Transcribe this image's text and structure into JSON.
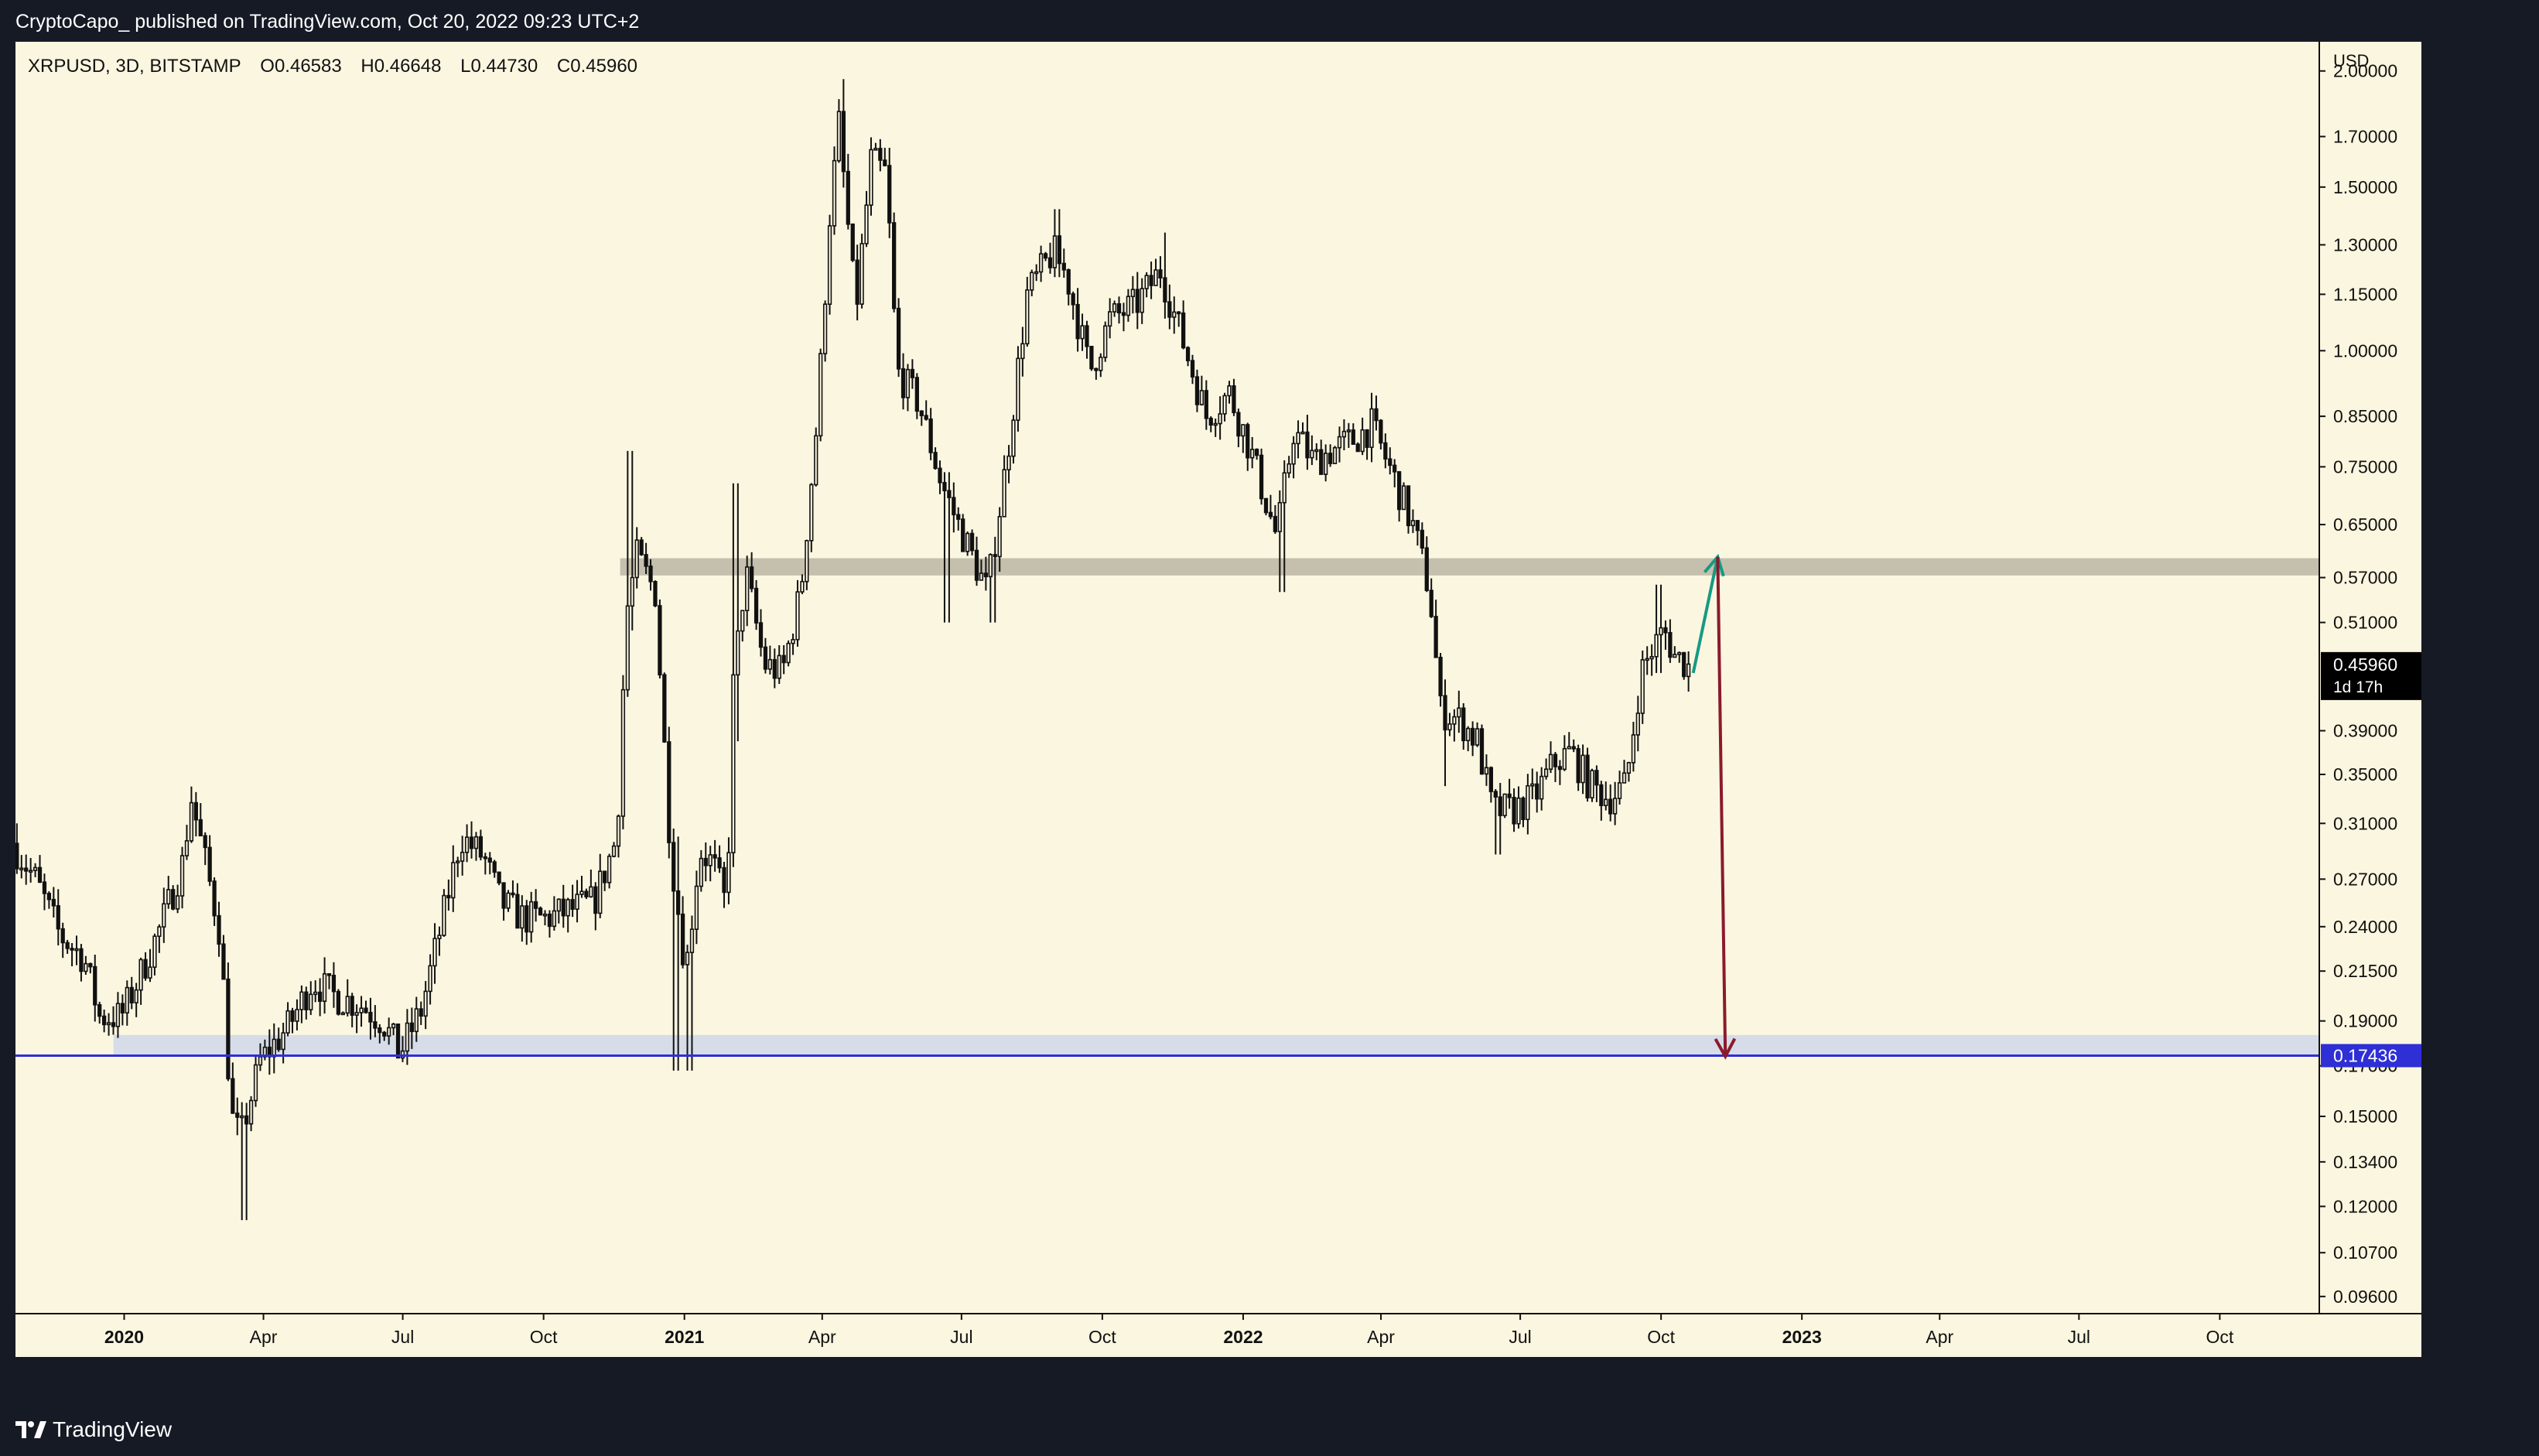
{
  "header": {
    "published_line": "CryptoCapo_ published on TradingView.com, Oct 20, 2022 09:23 UTC+2"
  },
  "legend": {
    "symbol": "XRPUSD, 3D, BITSTAMP",
    "open": "O0.46583",
    "high": "H0.46648",
    "low": "L0.44730",
    "close": "C0.45960"
  },
  "footer": {
    "brand": "TradingView"
  },
  "colors": {
    "background": "#fbf6e0",
    "chrome": "#161a25",
    "candle": "#111111",
    "resistance_zone": "#c5bfae",
    "support_zone": "#d6dce8",
    "support_line": "#2f2fd6",
    "arrow_up": "#169a82",
    "arrow_down": "#8b1a2c",
    "price_badge": "#000000",
    "level_badge": "#2f2fd6"
  },
  "chart_data": {
    "type": "candlestick",
    "symbol": "XRPUSD",
    "timeframe": "3D",
    "exchange": "BITSTAMP",
    "currency": "USD",
    "scale": "log",
    "y_range": [
      0.092,
      2.15
    ],
    "x_range": [
      "2019-10-22",
      "2023-12-05"
    ],
    "y_ticks": [
      "2.00000",
      "1.70000",
      "1.50000",
      "1.30000",
      "1.15000",
      "1.00000",
      "0.85000",
      "0.75000",
      "0.65000",
      "0.57000",
      "0.51000",
      "0.39000",
      "0.35000",
      "0.31000",
      "0.27000",
      "0.24000",
      "0.21500",
      "0.19000",
      "0.17000",
      "0.15000",
      "0.13400",
      "0.12000",
      "0.10700",
      "0.09600"
    ],
    "x_ticks": [
      {
        "label": "2020",
        "date": "2020-01-01",
        "bold": true
      },
      {
        "label": "Apr",
        "date": "2020-04-01",
        "bold": false
      },
      {
        "label": "Jul",
        "date": "2020-07-01",
        "bold": false
      },
      {
        "label": "Oct",
        "date": "2020-10-01",
        "bold": false
      },
      {
        "label": "2021",
        "date": "2021-01-01",
        "bold": true
      },
      {
        "label": "Apr",
        "date": "2021-04-01",
        "bold": false
      },
      {
        "label": "Jul",
        "date": "2021-07-01",
        "bold": false
      },
      {
        "label": "Oct",
        "date": "2021-10-01",
        "bold": false
      },
      {
        "label": "2022",
        "date": "2022-01-01",
        "bold": true
      },
      {
        "label": "Apr",
        "date": "2022-04-01",
        "bold": false
      },
      {
        "label": "Jul",
        "date": "2022-07-01",
        "bold": false
      },
      {
        "label": "Oct",
        "date": "2022-10-01",
        "bold": false
      },
      {
        "label": "2023",
        "date": "2023-01-01",
        "bold": true
      },
      {
        "label": "Apr",
        "date": "2023-04-01",
        "bold": false
      },
      {
        "label": "Jul",
        "date": "2023-07-01",
        "bold": false
      },
      {
        "label": "Oct",
        "date": "2023-10-01",
        "bold": false
      }
    ],
    "last_price": {
      "value": 0.4596,
      "label": "0.45960",
      "countdown": "1d 17h"
    },
    "support_level": {
      "value": 0.17436,
      "label": "0.17436"
    },
    "resistance_zone": {
      "from": "2020-11-20",
      "to": "2023-12-05",
      "low": 0.573,
      "high": 0.598
    },
    "support_zone": {
      "from": "2019-12-25",
      "to": "2023-12-05",
      "low": 0.1744,
      "high": 0.1835
    },
    "arrow_up": {
      "from": {
        "date": "2022-10-22",
        "value": 0.45
      },
      "to": {
        "date": "2022-11-07",
        "value": 0.6
      }
    },
    "arrow_down": {
      "from": {
        "date": "2022-11-07",
        "value": 0.6
      },
      "to": {
        "date": "2022-11-12",
        "value": 0.174
      }
    },
    "path_points": [
      [
        "2019-10-22",
        0.295
      ],
      [
        "2019-11-06",
        0.27
      ],
      [
        "2019-11-22",
        0.235
      ],
      [
        "2019-12-08",
        0.222
      ],
      [
        "2019-12-18",
        0.192
      ],
      [
        "2020-01-01",
        0.192
      ],
      [
        "2020-01-12",
        0.21
      ],
      [
        "2020-01-27",
        0.24
      ],
      [
        "2020-02-10",
        0.28
      ],
      [
        "2020-02-16",
        0.33
      ],
      [
        "2020-02-27",
        0.272
      ],
      [
        "2020-03-06",
        0.235
      ],
      [
        "2020-03-13",
        0.15
      ],
      [
        "2020-03-19",
        0.142
      ],
      [
        "2020-04-01",
        0.172
      ],
      [
        "2020-04-20",
        0.188
      ],
      [
        "2020-05-05",
        0.21
      ],
      [
        "2020-05-20",
        0.202
      ],
      [
        "2020-06-05",
        0.198
      ],
      [
        "2020-06-20",
        0.19
      ],
      [
        "2020-07-01",
        0.175
      ],
      [
        "2020-07-15",
        0.195
      ],
      [
        "2020-07-28",
        0.24
      ],
      [
        "2020-08-10",
        0.3
      ],
      [
        "2020-08-25",
        0.285
      ],
      [
        "2020-09-05",
        0.255
      ],
      [
        "2020-09-20",
        0.245
      ],
      [
        "2020-10-05",
        0.245
      ],
      [
        "2020-10-20",
        0.25
      ],
      [
        "2020-11-05",
        0.255
      ],
      [
        "2020-11-20",
        0.3
      ],
      [
        "2020-11-26",
        0.52
      ],
      [
        "2020-12-03",
        0.6
      ],
      [
        "2020-12-15",
        0.55
      ],
      [
        "2020-12-25",
        0.29
      ],
      [
        "2021-01-04",
        0.215
      ],
      [
        "2021-01-13",
        0.29
      ],
      [
        "2021-01-22",
        0.28
      ],
      [
        "2021-01-31",
        0.25
      ],
      [
        "2021-02-03",
        0.42
      ],
      [
        "2021-02-12",
        0.58
      ],
      [
        "2021-02-24",
        0.46
      ],
      [
        "2021-03-08",
        0.45
      ],
      [
        "2021-03-20",
        0.55
      ],
      [
        "2021-03-31",
        0.85
      ],
      [
        "2021-04-08",
        1.4
      ],
      [
        "2021-04-14",
        1.75
      ],
      [
        "2021-04-25",
        1.1
      ],
      [
        "2021-05-05",
        1.6
      ],
      [
        "2021-05-15",
        1.55
      ],
      [
        "2021-05-22",
        0.95
      ],
      [
        "2021-06-05",
        0.88
      ],
      [
        "2021-06-20",
        0.72
      ],
      [
        "2021-07-01",
        0.65
      ],
      [
        "2021-07-20",
        0.55
      ],
      [
        "2021-08-01",
        0.75
      ],
      [
        "2021-08-15",
        1.15
      ],
      [
        "2021-09-01",
        1.28
      ],
      [
        "2021-09-10",
        1.2
      ],
      [
        "2021-09-25",
        0.95
      ],
      [
        "2021-10-08",
        1.08
      ],
      [
        "2021-10-25",
        1.12
      ],
      [
        "2021-11-10",
        1.22
      ],
      [
        "2021-11-25",
        1.02
      ],
      [
        "2021-12-10",
        0.85
      ],
      [
        "2021-12-25",
        0.9
      ],
      [
        "2022-01-08",
        0.78
      ],
      [
        "2022-01-25",
        0.63
      ],
      [
        "2022-02-05",
        0.82
      ],
      [
        "2022-02-18",
        0.76
      ],
      [
        "2022-03-01",
        0.78
      ],
      [
        "2022-03-15",
        0.8
      ],
      [
        "2022-03-28",
        0.83
      ],
      [
        "2022-04-10",
        0.74
      ],
      [
        "2022-04-25",
        0.64
      ],
      [
        "2022-05-05",
        0.55
      ],
      [
        "2022-05-12",
        0.41
      ],
      [
        "2022-05-25",
        0.4
      ],
      [
        "2022-06-05",
        0.38
      ],
      [
        "2022-06-15",
        0.32
      ],
      [
        "2022-06-28",
        0.32
      ],
      [
        "2022-07-12",
        0.33
      ],
      [
        "2022-07-25",
        0.36
      ],
      [
        "2022-08-05",
        0.37
      ],
      [
        "2022-08-18",
        0.34
      ],
      [
        "2022-08-30",
        0.33
      ],
      [
        "2022-09-10",
        0.34
      ],
      [
        "2022-09-20",
        0.45
      ],
      [
        "2022-09-28",
        0.48
      ],
      [
        "2022-10-05",
        0.5
      ],
      [
        "2022-10-12",
        0.47
      ],
      [
        "2022-10-20",
        0.46
      ]
    ],
    "spikes": [
      [
        "2019-10-22",
        0.31,
        0.28
      ],
      [
        "2020-02-16",
        0.335,
        0.32
      ],
      [
        "2020-03-19",
        0.15,
        0.116
      ],
      [
        "2020-07-01",
        0.183,
        0.172
      ],
      [
        "2020-11-26",
        0.78,
        0.5
      ],
      [
        "2020-12-25",
        0.3,
        0.168
      ],
      [
        "2021-01-04",
        0.22,
        0.168
      ],
      [
        "2021-02-03",
        0.72,
        0.38
      ],
      [
        "2021-04-14",
        1.96,
        1.6
      ],
      [
        "2021-06-20",
        0.74,
        0.51
      ],
      [
        "2021-07-20",
        0.58,
        0.51
      ],
      [
        "2021-09-01",
        1.42,
        1.2
      ],
      [
        "2021-11-10",
        1.34,
        1.15
      ],
      [
        "2022-01-25",
        0.66,
        0.55
      ],
      [
        "2022-05-12",
        0.43,
        0.34
      ],
      [
        "2022-06-15",
        0.33,
        0.287
      ],
      [
        "2022-09-28",
        0.56,
        0.45
      ]
    ]
  }
}
